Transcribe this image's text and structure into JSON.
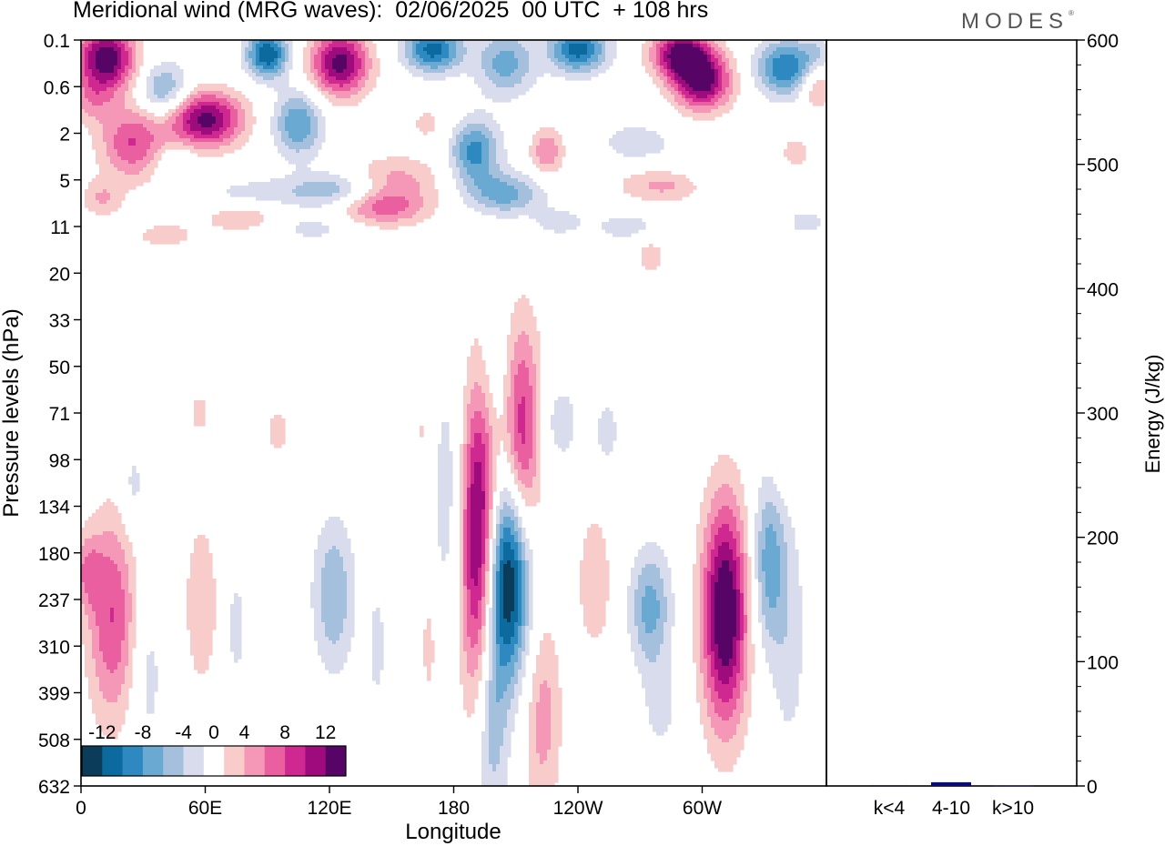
{
  "title": "Meridional wind (MRG waves):  02/06/2025  00 UTC  + 108 hrs",
  "brand": "MODES",
  "brand_mark": "®",
  "colors": {
    "neg": [
      "#0b3d5b",
      "#0d6a9e",
      "#2f89c1",
      "#6aa9d1",
      "#a4c0dd",
      "#d9dcec"
    ],
    "pos": [
      "#f9cccc",
      "#f597b7",
      "#ea5f9f",
      "#cf2891",
      "#9e0b7c",
      "#560567"
    ],
    "energy_bar": "#0a0a78"
  },
  "chart_data": [
    {
      "type": "heatmap",
      "title": "Meridional wind (MRG waves):  02/06/2025  00 UTC  + 108 hrs",
      "xlabel": "Longitude",
      "ylabel": "Pressure levels (hPa)",
      "x_ticks": [
        "0",
        "60E",
        "120E",
        "180",
        "120W",
        "60W"
      ],
      "x_tick_values": [
        0,
        60,
        120,
        180,
        240,
        300
      ],
      "xlim": [
        0,
        360
      ],
      "y_ticks": [
        "0.1",
        "0.6",
        "2",
        "5",
        "11",
        "20",
        "33",
        "50",
        "71",
        "98",
        "134",
        "180",
        "237",
        "310",
        "399",
        "508",
        "632"
      ],
      "y_reversed": true,
      "colorbar": {
        "labels": [
          "-12",
          "-8",
          "-4",
          "0",
          "4",
          "8",
          "12"
        ],
        "levels": [
          -14,
          -12,
          -10,
          -8,
          -6,
          -4,
          -2,
          2,
          4,
          6,
          8,
          10,
          12,
          14
        ]
      },
      "blobs": [
        {
          "lon": 192,
          "lev": 10.7,
          "w": 9,
          "h": 3.4,
          "v": 15
        },
        {
          "lon": 206,
          "lev": 11.5,
          "w": 11,
          "h": 2.2,
          "v": -15
        },
        {
          "lon": 213,
          "lev": 8.5,
          "w": 9,
          "h": 2.4,
          "v": 10
        },
        {
          "lon": 198,
          "lev": 14.5,
          "w": 8,
          "h": 2.4,
          "v": -6
        },
        {
          "lon": 223,
          "lev": 14.5,
          "w": 9,
          "h": 2.2,
          "v": 5
        },
        {
          "lon": 179,
          "lev": 9.8,
          "w": 10,
          "h": 3.0,
          "v": -3.5
        },
        {
          "lon": 199,
          "lev": 7.2,
          "w": 9,
          "h": 1.4,
          "v": -2.5
        },
        {
          "lon": 231,
          "lev": 8.2,
          "w": 11,
          "h": 1.0,
          "v": -3
        },
        {
          "lon": 248,
          "lev": 11.6,
          "w": 8,
          "h": 1.5,
          "v": 4
        },
        {
          "lon": 275,
          "lev": 12.2,
          "w": 10,
          "h": 1.3,
          "v": -7
        },
        {
          "lon": 311,
          "lev": 12.3,
          "w": 11,
          "h": 2.4,
          "v": 15
        },
        {
          "lon": 332,
          "lev": 11.2,
          "w": 8,
          "h": 1.8,
          "v": -7
        },
        {
          "lon": 342,
          "lev": 12.8,
          "w": 9,
          "h": 2.8,
          "v": -3
        },
        {
          "lon": 15,
          "lev": 12.4,
          "w": 12,
          "h": 2.2,
          "v": 8
        },
        {
          "lon": 3,
          "lev": 11.4,
          "w": 7,
          "h": 0.8,
          "v": 5
        },
        {
          "lon": 32,
          "lev": 13.6,
          "w": 8,
          "h": 1.8,
          "v": -3
        },
        {
          "lon": 58,
          "lev": 12.1,
          "w": 8,
          "h": 1.8,
          "v": 4
        },
        {
          "lon": 75,
          "lev": 12.6,
          "w": 5,
          "h": 1.2,
          "v": -3
        },
        {
          "lon": 122,
          "lev": 11.9,
          "w": 10,
          "h": 1.6,
          "v": -6
        },
        {
          "lon": 95,
          "lev": 8.4,
          "w": 8,
          "h": 0.8,
          "v": 2.5
        },
        {
          "lon": 57,
          "lev": 8.0,
          "w": 7,
          "h": 0.6,
          "v": 2.5
        },
        {
          "lon": 25,
          "lev": 9.6,
          "w": 6,
          "h": 1.0,
          "v": -3
        },
        {
          "lon": 165,
          "lev": 8.4,
          "w": 4,
          "h": 0.5,
          "v": 2.5
        },
        {
          "lon": 254,
          "lev": 8.4,
          "w": 6,
          "h": 0.8,
          "v": -3
        },
        {
          "lon": 340,
          "lev": 8.8,
          "w": 7,
          "h": 1.0,
          "v": 2.5
        },
        {
          "lon": 168,
          "lev": 13.0,
          "w": 4,
          "h": 1.3,
          "v": 3
        },
        {
          "lon": 143,
          "lev": 13.0,
          "w": 4,
          "h": 1.3,
          "v": -3
        },
        {
          "lon": 280,
          "lev": 14.3,
          "w": 8,
          "h": 0.9,
          "v": -3
        },
        {
          "lon": 12,
          "lev": 0.4,
          "w": 14,
          "h": 0.7,
          "v": 14
        },
        {
          "lon": 40,
          "lev": 1.1,
          "w": 12,
          "h": 0.6,
          "v": -7
        },
        {
          "lon": 90,
          "lev": 0.3,
          "w": 10,
          "h": 0.5,
          "v": -12
        },
        {
          "lon": 125,
          "lev": 0.5,
          "w": 14,
          "h": 0.7,
          "v": 13
        },
        {
          "lon": 170,
          "lev": 0.2,
          "w": 14,
          "h": 0.5,
          "v": -11
        },
        {
          "lon": 205,
          "lev": 0.5,
          "w": 14,
          "h": 0.7,
          "v": -7
        },
        {
          "lon": 240,
          "lev": 0.2,
          "w": 14,
          "h": 0.5,
          "v": -11
        },
        {
          "lon": 290,
          "lev": 0.3,
          "w": 14,
          "h": 0.5,
          "v": 13
        },
        {
          "lon": 300,
          "lev": 0.9,
          "w": 14,
          "h": 0.6,
          "v": 13
        },
        {
          "lon": 340,
          "lev": 0.6,
          "w": 14,
          "h": 0.6,
          "v": -10
        },
        {
          "lon": 355,
          "lev": 1.0,
          "w": 8,
          "h": 0.5,
          "v": 5
        },
        {
          "lon": 25,
          "lev": 2.2,
          "w": 16,
          "h": 0.8,
          "v": 8
        },
        {
          "lon": 60,
          "lev": 1.7,
          "w": 18,
          "h": 0.6,
          "v": 13
        },
        {
          "lon": 105,
          "lev": 1.8,
          "w": 12,
          "h": 0.7,
          "v": -8
        },
        {
          "lon": 150,
          "lev": 3.0,
          "w": 24,
          "h": 0.5,
          "v": 5
        },
        {
          "lon": 168,
          "lev": 1.8,
          "w": 12,
          "h": 0.5,
          "v": 2.5
        },
        {
          "lon": 190,
          "lev": 2.4,
          "w": 12,
          "h": 0.7,
          "v": -9
        },
        {
          "lon": 225,
          "lev": 2.4,
          "w": 8,
          "h": 0.5,
          "v": 6
        },
        {
          "lon": 268,
          "lev": 2.2,
          "w": 20,
          "h": 0.5,
          "v": -3
        },
        {
          "lon": 300,
          "lev": 3.0,
          "w": 22,
          "h": 0.5,
          "v": -3
        },
        {
          "lon": 85,
          "lev": 3.3,
          "w": 30,
          "h": 0.35,
          "v": -3
        },
        {
          "lon": 125,
          "lev": 3.2,
          "w": 22,
          "h": 0.4,
          "v": -6
        },
        {
          "lon": 145,
          "lev": 3.6,
          "w": 22,
          "h": 0.4,
          "v": 7
        },
        {
          "lon": 205,
          "lev": 3.3,
          "w": 18,
          "h": 0.45,
          "v": -7
        },
        {
          "lon": 285,
          "lev": 3.1,
          "w": 24,
          "h": 0.4,
          "v": 6
        },
        {
          "lon": 345,
          "lev": 2.4,
          "w": 8,
          "h": 0.4,
          "v": 3
        },
        {
          "lon": 80,
          "lev": 3.8,
          "w": 22,
          "h": 0.35,
          "v": 4
        },
        {
          "lon": 110,
          "lev": 4.0,
          "w": 24,
          "h": 0.35,
          "v": -3
        },
        {
          "lon": 265,
          "lev": 4.0,
          "w": 20,
          "h": 0.35,
          "v": -3
        },
        {
          "lon": 230,
          "lev": 3.9,
          "w": 12,
          "h": 0.3,
          "v": -3
        },
        {
          "lon": 275,
          "lev": 4.6,
          "w": 8,
          "h": 0.5,
          "v": 3
        },
        {
          "lon": 40,
          "lev": 4.2,
          "w": 16,
          "h": 0.3,
          "v": 3
        },
        {
          "lon": 350,
          "lev": 3.9,
          "w": 10,
          "h": 0.3,
          "v": -3
        },
        {
          "lon": 10,
          "lev": 3.4,
          "w": 10,
          "h": 0.4,
          "v": 4
        },
        {
          "lon": 45,
          "lev": 2.6,
          "w": 10,
          "h": 0.4,
          "v": -3
        },
        {
          "lon": 5,
          "lev": 1.3,
          "w": 10,
          "h": 0.5,
          "v": 4
        },
        {
          "lon": 355,
          "lev": 0.3,
          "w": 8,
          "h": 0.4,
          "v": -3
        }
      ]
    },
    {
      "type": "bar",
      "ylabel": "Energy (J/kg)",
      "ylim": [
        0,
        600
      ],
      "y_ticks": [
        "0",
        "100",
        "200",
        "300",
        "400",
        "500",
        "600"
      ],
      "categories": [
        "k<4",
        "4-10",
        "k>10"
      ],
      "values": [
        0.5,
        3,
        0.3
      ]
    }
  ]
}
